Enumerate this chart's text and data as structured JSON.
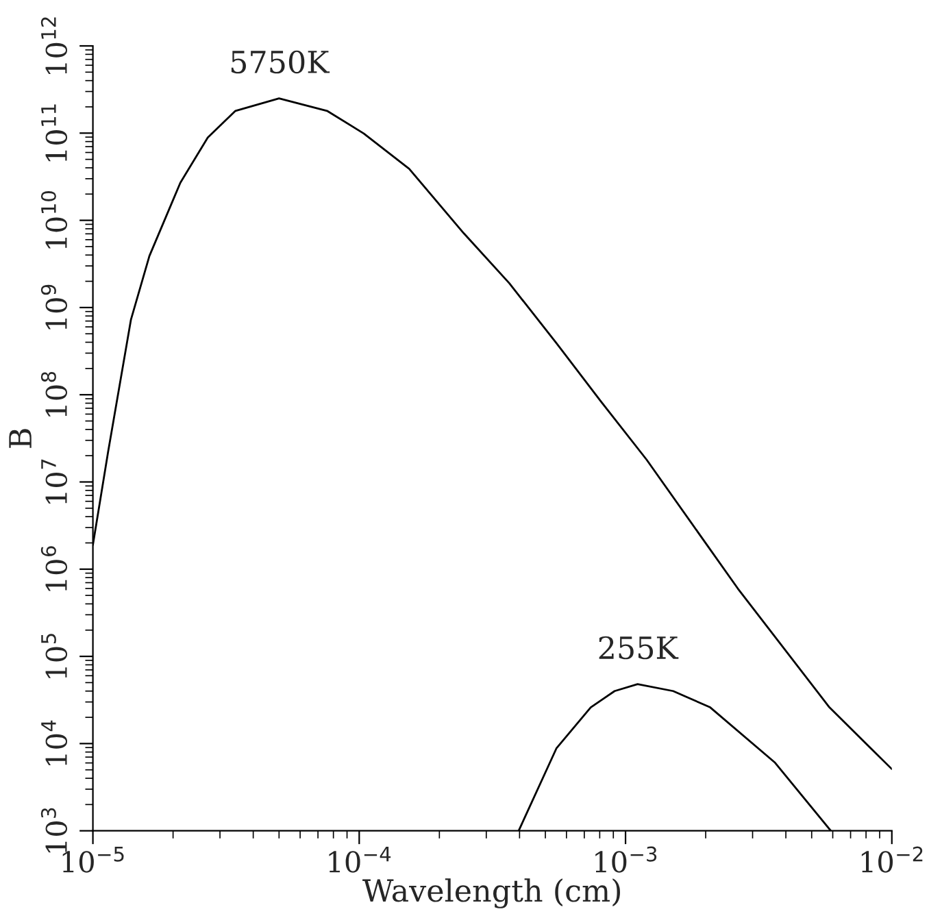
{
  "chart_data": {
    "type": "line",
    "xlabel": "Wavelength (cm)",
    "ylabel": "B",
    "log": "xy",
    "grid": false,
    "legend": false,
    "marker": "none",
    "line_style": "solid",
    "xlim": [
      1e-05,
      0.01
    ],
    "ylim": [
      1000.0,
      1000000000000.0
    ],
    "xticks": [
      {
        "value": 1e-05,
        "label": "10$^{−5}$"
      },
      {
        "value": 0.0001,
        "label": "10$^{−4}$"
      },
      {
        "value": 0.001,
        "label": "10$^{−3}$"
      },
      {
        "value": 0.01,
        "label": "10$^{−2}$"
      }
    ],
    "yticks": [
      {
        "value": 1000.0,
        "label": "10$^{3}$"
      },
      {
        "value": 10000.0,
        "label": "10$^{4}$"
      },
      {
        "value": 100000.0,
        "label": "10$^{5}$"
      },
      {
        "value": 1000000.0,
        "label": "10$^{6}$"
      },
      {
        "value": 10000000.0,
        "label": "10$^{7}$"
      },
      {
        "value": 100000000.0,
        "label": "10$^{8}$"
      },
      {
        "value": 1000000000.0,
        "label": "10$^{9}$"
      },
      {
        "value": 10000000000.0,
        "label": "10$^{10}$"
      },
      {
        "value": 100000000000.0,
        "label": "10$^{11}$"
      },
      {
        "value": 1000000000000.0,
        "label": "10$^{12}$"
      }
    ],
    "series": [
      {
        "name": "5750K",
        "color": "#000000",
        "x": [
          1e-05,
          1.14e-05,
          1.39e-05,
          1.63e-05,
          2.13e-05,
          2.7e-05,
          3.43e-05,
          5e-05,
          7.57e-05,
          0.000104,
          0.000154,
          0.000247,
          0.000366,
          0.000547,
          0.000808,
          0.0012,
          0.00264,
          0.00583,
          0.01
        ],
        "values": [
          1900000.0,
          22000000.0,
          730000000.0,
          3900000000.0,
          27000000000.0,
          89000000000.0,
          180000000000.0,
          250000000000.0,
          180000000000.0,
          99000000000.0,
          39000000000.0,
          7100000000.0,
          1900000000.0,
          400000000.0,
          84000000.0,
          18000000.0,
          600000.0,
          26000.0,
          5100.0
        ]
      },
      {
        "name": "255K",
        "color": "#000000",
        "x": [
          0.000397,
          0.00055,
          0.00074,
          0.00091,
          0.00111,
          0.00151,
          0.00208,
          0.00363,
          0.0059
        ],
        "values": [
          1000.0,
          8800.0,
          26000.0,
          40000.0,
          48000.0,
          40000.0,
          26000.0,
          6100.0,
          1000.0
        ]
      }
    ]
  }
}
